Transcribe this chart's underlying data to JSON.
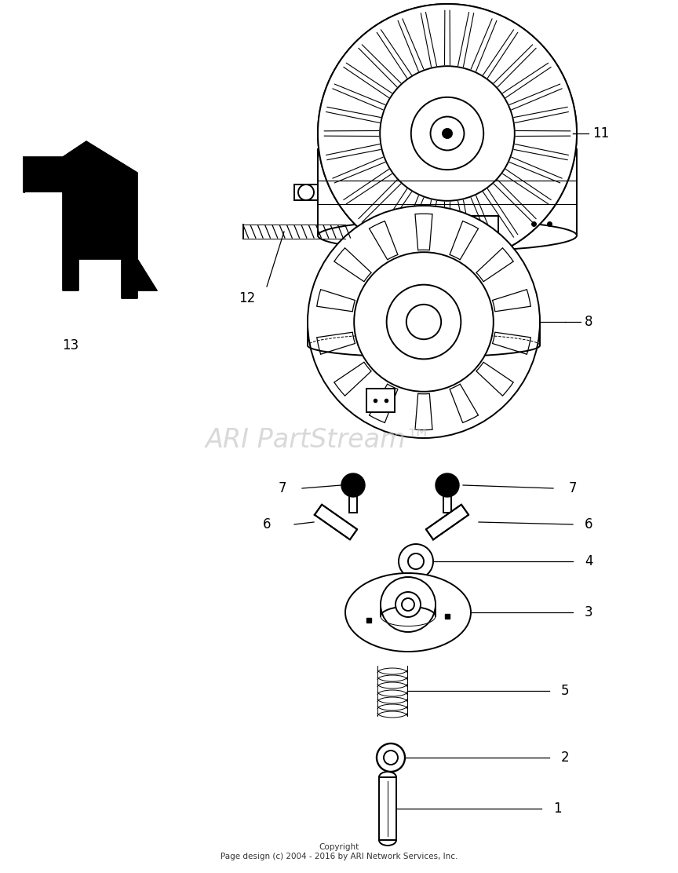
{
  "bg_color": "#ffffff",
  "line_color": "#000000",
  "watermark_color": "#c0c0c0",
  "watermark_text": "ARI PartStream™",
  "copyright_text": "Copyright\nPage design (c) 2004 - 2016 by ARI Network Services, Inc.",
  "fig_width": 8.64,
  "fig_height": 11.12
}
